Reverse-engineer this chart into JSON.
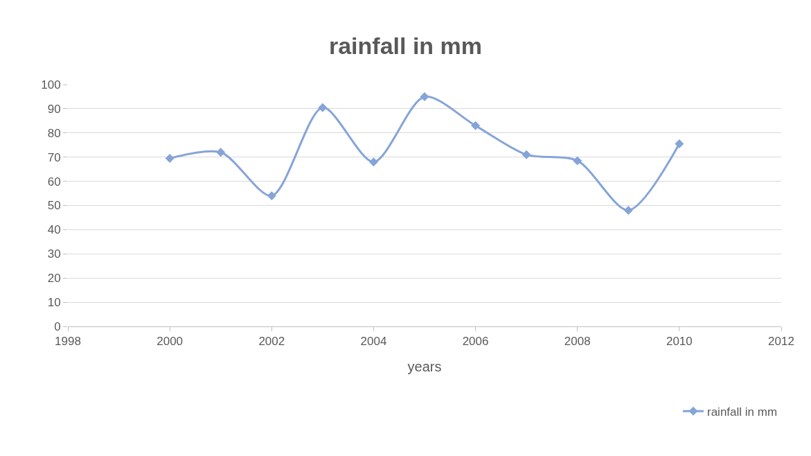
{
  "chart_data": {
    "type": "line",
    "title": "rainfall in mm",
    "xlabel": "years",
    "x": [
      2000,
      2001,
      2002,
      2003,
      2004,
      2005,
      2006,
      2007,
      2008,
      2009,
      2010
    ],
    "series": [
      {
        "name": "rainfall in mm",
        "color": "#85a4d8",
        "values": [
          69.5,
          72,
          54,
          90.5,
          68,
          95,
          83,
          71,
          68.5,
          48,
          75.5
        ]
      }
    ],
    "xlim": [
      1998,
      2012
    ],
    "xticks": [
      1998,
      2000,
      2002,
      2004,
      2006,
      2008,
      2010,
      2012
    ],
    "ylim": [
      0,
      100
    ],
    "yticks": [
      0,
      10,
      20,
      30,
      40,
      50,
      60,
      70,
      80,
      90,
      100
    ],
    "grid": "y",
    "legend": "bottom right",
    "marker": "diamond",
    "line_style": "solid"
  }
}
